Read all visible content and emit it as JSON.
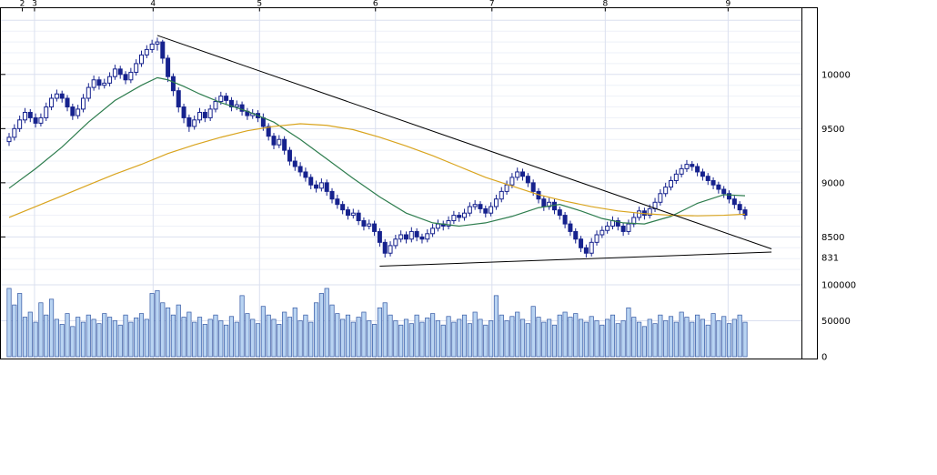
{
  "chart_data": {
    "type": "candlestick",
    "title": "",
    "layout": {
      "grid": true,
      "panels": [
        "price",
        "volume"
      ],
      "axis_side": "right"
    },
    "x_axis": {
      "unit": "month",
      "months": [
        {
          "label": "2",
          "index": 2.5,
          "grid": false
        },
        {
          "label": "3",
          "index": 4.8,
          "grid": true
        },
        {
          "label": "4",
          "index": 27.2,
          "grid": true
        },
        {
          "label": "5",
          "index": 47.3,
          "grid": true
        },
        {
          "label": "6",
          "index": 69.2,
          "grid": true
        },
        {
          "label": "7",
          "index": 91.2,
          "grid": true
        },
        {
          "label": "8",
          "index": 112.6,
          "grid": true
        },
        {
          "label": "9",
          "index": 135.8,
          "grid": true
        }
      ]
    },
    "price_axis": {
      "ticks": [
        10000,
        9500,
        9000,
        8500
      ],
      "ylim": [
        8100,
        10620
      ],
      "current_label": {
        "text": "831",
        "price": 8310
      }
    },
    "volume_axis": {
      "ticks": [
        100000,
        50000,
        0
      ],
      "ylim": [
        0,
        105000
      ]
    },
    "candles": [
      [
        9380,
        9460,
        9340,
        9420
      ],
      [
        9420,
        9540,
        9390,
        9500
      ],
      [
        9500,
        9620,
        9470,
        9580
      ],
      [
        9580,
        9690,
        9550,
        9650
      ],
      [
        9650,
        9680,
        9560,
        9600
      ],
      [
        9600,
        9640,
        9510,
        9550
      ],
      [
        9550,
        9640,
        9520,
        9600
      ],
      [
        9600,
        9740,
        9570,
        9700
      ],
      [
        9700,
        9820,
        9670,
        9780
      ],
      [
        9780,
        9860,
        9750,
        9820
      ],
      [
        9820,
        9850,
        9740,
        9780
      ],
      [
        9780,
        9810,
        9660,
        9700
      ],
      [
        9700,
        9730,
        9580,
        9620
      ],
      [
        9620,
        9720,
        9590,
        9680
      ],
      [
        9680,
        9820,
        9650,
        9780
      ],
      [
        9780,
        9920,
        9750,
        9880
      ],
      [
        9880,
        9990,
        9850,
        9950
      ],
      [
        9950,
        9980,
        9860,
        9900
      ],
      [
        9900,
        9960,
        9870,
        9920
      ],
      [
        9920,
        10020,
        9890,
        9980
      ],
      [
        9980,
        10090,
        9950,
        10050
      ],
      [
        10050,
        10080,
        9960,
        10000
      ],
      [
        10000,
        10030,
        9910,
        9950
      ],
      [
        9950,
        10060,
        9920,
        10020
      ],
      [
        10020,
        10140,
        9990,
        10100
      ],
      [
        10100,
        10220,
        10070,
        10180
      ],
      [
        10180,
        10270,
        10150,
        10230
      ],
      [
        10230,
        10320,
        10200,
        10280
      ],
      [
        10280,
        10340,
        10220,
        10300
      ],
      [
        10300,
        10320,
        10100,
        10150
      ],
      [
        10150,
        10180,
        9930,
        9980
      ],
      [
        9980,
        10010,
        9800,
        9850
      ],
      [
        9850,
        9880,
        9650,
        9700
      ],
      [
        9700,
        9730,
        9550,
        9600
      ],
      [
        9600,
        9630,
        9470,
        9520
      ],
      [
        9520,
        9620,
        9490,
        9580
      ],
      [
        9580,
        9690,
        9550,
        9650
      ],
      [
        9650,
        9680,
        9560,
        9600
      ],
      [
        9600,
        9720,
        9570,
        9680
      ],
      [
        9680,
        9790,
        9650,
        9750
      ],
      [
        9750,
        9840,
        9720,
        9800
      ],
      [
        9800,
        9830,
        9720,
        9760
      ],
      [
        9760,
        9790,
        9660,
        9700
      ],
      [
        9700,
        9760,
        9670,
        9720
      ],
      [
        9720,
        9750,
        9620,
        9660
      ],
      [
        9660,
        9690,
        9580,
        9620
      ],
      [
        9620,
        9680,
        9590,
        9640
      ],
      [
        9640,
        9670,
        9560,
        9600
      ],
      [
        9600,
        9640,
        9480,
        9520
      ],
      [
        9520,
        9550,
        9390,
        9430
      ],
      [
        9430,
        9460,
        9310,
        9350
      ],
      [
        9350,
        9440,
        9320,
        9400
      ],
      [
        9400,
        9430,
        9260,
        9300
      ],
      [
        9300,
        9330,
        9160,
        9200
      ],
      [
        9200,
        9240,
        9110,
        9150
      ],
      [
        9150,
        9190,
        9060,
        9100
      ],
      [
        9100,
        9140,
        9010,
        9050
      ],
      [
        9050,
        9080,
        8940,
        8980
      ],
      [
        8980,
        9020,
        8910,
        8950
      ],
      [
        8950,
        9040,
        8920,
        9000
      ],
      [
        9000,
        9030,
        8880,
        8920
      ],
      [
        8920,
        8950,
        8810,
        8850
      ],
      [
        8850,
        8890,
        8760,
        8800
      ],
      [
        8800,
        8830,
        8710,
        8750
      ],
      [
        8750,
        8780,
        8660,
        8700
      ],
      [
        8700,
        8760,
        8670,
        8720
      ],
      [
        8720,
        8750,
        8610,
        8650
      ],
      [
        8650,
        8680,
        8560,
        8600
      ],
      [
        8600,
        8660,
        8570,
        8620
      ],
      [
        8620,
        8650,
        8510,
        8550
      ],
      [
        8550,
        8580,
        8410,
        8450
      ],
      [
        8450,
        8480,
        8310,
        8350
      ],
      [
        8350,
        8460,
        8320,
        8420
      ],
      [
        8420,
        8520,
        8390,
        8480
      ],
      [
        8480,
        8560,
        8450,
        8520
      ],
      [
        8520,
        8550,
        8440,
        8480
      ],
      [
        8480,
        8590,
        8450,
        8550
      ],
      [
        8550,
        8580,
        8460,
        8500
      ],
      [
        8500,
        8530,
        8440,
        8480
      ],
      [
        8480,
        8570,
        8450,
        8530
      ],
      [
        8530,
        8620,
        8500,
        8580
      ],
      [
        8580,
        8660,
        8550,
        8620
      ],
      [
        8620,
        8650,
        8560,
        8600
      ],
      [
        8600,
        8690,
        8570,
        8650
      ],
      [
        8650,
        8740,
        8620,
        8700
      ],
      [
        8700,
        8730,
        8640,
        8680
      ],
      [
        8680,
        8760,
        8650,
        8720
      ],
      [
        8720,
        8820,
        8690,
        8780
      ],
      [
        8780,
        8840,
        8750,
        8800
      ],
      [
        8800,
        8830,
        8720,
        8760
      ],
      [
        8760,
        8790,
        8680,
        8720
      ],
      [
        8720,
        8820,
        8690,
        8780
      ],
      [
        8780,
        8890,
        8750,
        8850
      ],
      [
        8850,
        8960,
        8820,
        8920
      ],
      [
        8920,
        9020,
        8890,
        8980
      ],
      [
        8980,
        9090,
        8950,
        9050
      ],
      [
        9050,
        9140,
        9020,
        9100
      ],
      [
        9100,
        9130,
        9020,
        9060
      ],
      [
        9060,
        9090,
        8960,
        9000
      ],
      [
        9000,
        9030,
        8880,
        8920
      ],
      [
        8920,
        8950,
        8810,
        8850
      ],
      [
        8850,
        8880,
        8740,
        8780
      ],
      [
        8780,
        8860,
        8750,
        8820
      ],
      [
        8820,
        8850,
        8710,
        8750
      ],
      [
        8750,
        8780,
        8660,
        8700
      ],
      [
        8700,
        8730,
        8580,
        8620
      ],
      [
        8620,
        8650,
        8510,
        8550
      ],
      [
        8550,
        8580,
        8440,
        8480
      ],
      [
        8480,
        8510,
        8360,
        8400
      ],
      [
        8400,
        8430,
        8310,
        8350
      ],
      [
        8350,
        8490,
        8320,
        8450
      ],
      [
        8450,
        8560,
        8420,
        8520
      ],
      [
        8520,
        8600,
        8490,
        8560
      ],
      [
        8560,
        8640,
        8530,
        8600
      ],
      [
        8600,
        8690,
        8570,
        8650
      ],
      [
        8650,
        8680,
        8560,
        8600
      ],
      [
        8600,
        8630,
        8510,
        8550
      ],
      [
        8550,
        8660,
        8520,
        8620
      ],
      [
        8620,
        8720,
        8590,
        8680
      ],
      [
        8680,
        8780,
        8650,
        8740
      ],
      [
        8740,
        8770,
        8660,
        8700
      ],
      [
        8700,
        8800,
        8670,
        8760
      ],
      [
        8760,
        8860,
        8730,
        8820
      ],
      [
        8820,
        8940,
        8790,
        8900
      ],
      [
        8900,
        9000,
        8870,
        8960
      ],
      [
        8960,
        9060,
        8930,
        9020
      ],
      [
        9020,
        9120,
        8990,
        9080
      ],
      [
        9080,
        9170,
        9050,
        9130
      ],
      [
        9130,
        9210,
        9100,
        9170
      ],
      [
        9170,
        9200,
        9110,
        9150
      ],
      [
        9150,
        9180,
        9060,
        9100
      ],
      [
        9100,
        9130,
        9020,
        9060
      ],
      [
        9060,
        9090,
        8980,
        9020
      ],
      [
        9020,
        9050,
        8940,
        8980
      ],
      [
        8980,
        9010,
        8900,
        8940
      ],
      [
        8940,
        8970,
        8860,
        8900
      ],
      [
        8900,
        8930,
        8810,
        8850
      ],
      [
        8850,
        8880,
        8760,
        8800
      ],
      [
        8800,
        8830,
        8710,
        8750
      ],
      [
        8750,
        8780,
        8660,
        8700
      ]
    ],
    "volumes": [
      95000,
      72000,
      88000,
      55000,
      62000,
      48000,
      75000,
      58000,
      80000,
      52000,
      45000,
      60000,
      42000,
      55000,
      48000,
      58000,
      52000,
      46000,
      60000,
      55000,
      50000,
      44000,
      58000,
      48000,
      54000,
      60000,
      52000,
      88000,
      92000,
      75000,
      68000,
      58000,
      72000,
      55000,
      62000,
      48000,
      55000,
      45000,
      52000,
      58000,
      50000,
      44000,
      56000,
      48000,
      85000,
      60000,
      52000,
      46000,
      70000,
      58000,
      52000,
      45000,
      62000,
      55000,
      68000,
      50000,
      58000,
      48000,
      75000,
      88000,
      95000,
      72000,
      60000,
      52000,
      58000,
      48000,
      55000,
      62000,
      50000,
      45000,
      68000,
      75000,
      58000,
      50000,
      44000,
      52000,
      46000,
      58000,
      48000,
      54000,
      60000,
      50000,
      44000,
      56000,
      48000,
      52000,
      58000,
      46000,
      62000,
      52000,
      44000,
      50000,
      85000,
      58000,
      50000,
      56000,
      62000,
      52000,
      46000,
      70000,
      55000,
      48000,
      52000,
      44000,
      58000,
      62000,
      55000,
      60000,
      52000,
      48000,
      56000,
      50000,
      44000,
      52000,
      58000,
      46000,
      50000,
      68000,
      55000,
      48000,
      42000,
      52000,
      46000,
      58000,
      50000,
      56000,
      48000,
      62000,
      55000,
      48000,
      58000,
      52000,
      44000,
      60000,
      50000,
      56000,
      46000,
      52000,
      58000,
      48000
    ],
    "moving_averages": [
      {
        "name": "short-ma-line",
        "color": "#2e7d4e",
        "points": [
          [
            0,
            8950
          ],
          [
            5,
            9130
          ],
          [
            10,
            9330
          ],
          [
            15,
            9560
          ],
          [
            20,
            9760
          ],
          [
            25,
            9900
          ],
          [
            28,
            9970
          ],
          [
            30,
            9950
          ],
          [
            33,
            9890
          ],
          [
            36,
            9820
          ],
          [
            40,
            9740
          ],
          [
            45,
            9660
          ],
          [
            50,
            9560
          ],
          [
            55,
            9400
          ],
          [
            60,
            9220
          ],
          [
            65,
            9040
          ],
          [
            70,
            8870
          ],
          [
            75,
            8720
          ],
          [
            80,
            8630
          ],
          [
            85,
            8600
          ],
          [
            90,
            8630
          ],
          [
            95,
            8690
          ],
          [
            100,
            8770
          ],
          [
            104,
            8800
          ],
          [
            108,
            8740
          ],
          [
            112,
            8670
          ],
          [
            116,
            8630
          ],
          [
            120,
            8620
          ],
          [
            125,
            8690
          ],
          [
            130,
            8810
          ],
          [
            135,
            8890
          ],
          [
            139,
            8880
          ]
        ]
      },
      {
        "name": "long-ma-line",
        "color": "#d9a41e",
        "points": [
          [
            0,
            8680
          ],
          [
            5,
            8780
          ],
          [
            10,
            8880
          ],
          [
            15,
            8980
          ],
          [
            20,
            9080
          ],
          [
            25,
            9170
          ],
          [
            30,
            9270
          ],
          [
            35,
            9350
          ],
          [
            40,
            9420
          ],
          [
            45,
            9480
          ],
          [
            50,
            9520
          ],
          [
            55,
            9545
          ],
          [
            60,
            9530
          ],
          [
            65,
            9490
          ],
          [
            70,
            9420
          ],
          [
            75,
            9340
          ],
          [
            80,
            9250
          ],
          [
            85,
            9150
          ],
          [
            90,
            9050
          ],
          [
            95,
            8970
          ],
          [
            100,
            8890
          ],
          [
            105,
            8830
          ],
          [
            110,
            8780
          ],
          [
            115,
            8740
          ],
          [
            120,
            8715
          ],
          [
            125,
            8700
          ],
          [
            130,
            8695
          ],
          [
            135,
            8700
          ],
          [
            139,
            8710
          ]
        ]
      }
    ],
    "trendlines": [
      {
        "name": "descending-resistance-line",
        "from": [
          28,
          10360
        ],
        "to": [
          144,
          8390
        ]
      },
      {
        "name": "ascending-support-line",
        "from": [
          70,
          8230
        ],
        "to": [
          144,
          8360
        ]
      }
    ],
    "colors": {
      "background": "#ffffff",
      "candle": "#16228e",
      "up_fill": "#ffffff",
      "volume_fill": "#b9d4f2",
      "volume_border": "#3c5fa8",
      "trendline": "#000000",
      "grid_minor": "#eef1f8",
      "grid_major": "#dbe0ef",
      "border": "#000000",
      "axis_text": "#000000",
      "muted_text": "#9a9a9a"
    }
  }
}
